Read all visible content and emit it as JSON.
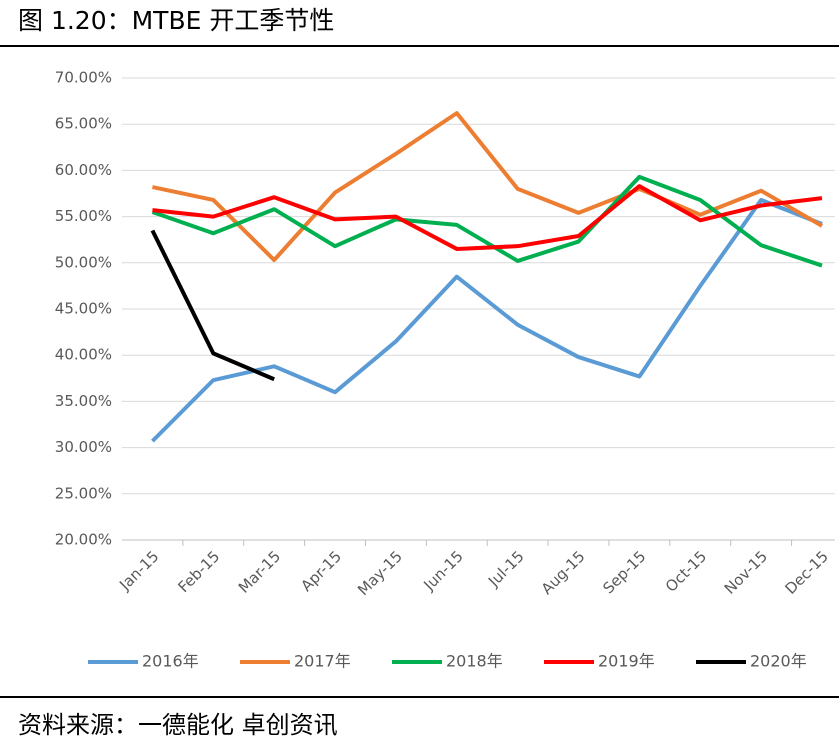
{
  "chart_data": {
    "type": "line",
    "title": "图 1.20：MTBE 开工季节性",
    "source": "资料来源：一德能化  卓创资讯",
    "categories": [
      "Jan-15",
      "Feb-15",
      "Mar-15",
      "Apr-15",
      "May-15",
      "Jun-15",
      "Jul-15",
      "Aug-15",
      "Sep-15",
      "Oct-15",
      "Nov-15",
      "Dec-15"
    ],
    "series": [
      {
        "name": "2016年",
        "color": "#5b9bd5",
        "values": [
          30.7,
          37.3,
          38.8,
          36.0,
          41.5,
          48.5,
          43.3,
          39.8,
          37.7,
          47.5,
          56.8,
          54.2
        ]
      },
      {
        "name": "2017年",
        "color": "#ed7d31",
        "values": [
          58.2,
          56.8,
          50.3,
          57.6,
          61.8,
          66.2,
          58.0,
          55.4,
          58.0,
          55.2,
          57.8,
          54.0
        ]
      },
      {
        "name": "2018年",
        "color": "#00b050",
        "values": [
          55.5,
          53.2,
          55.8,
          51.8,
          54.7,
          54.1,
          50.2,
          52.3,
          59.3,
          56.8,
          51.9,
          49.7
        ]
      },
      {
        "name": "2019年",
        "color": "#ff0000",
        "values": [
          55.7,
          55.0,
          57.1,
          54.7,
          55.0,
          51.5,
          51.8,
          52.9,
          58.3,
          54.6,
          56.2,
          57.0
        ]
      },
      {
        "name": "2020年",
        "color": "#000000",
        "values": [
          53.5,
          40.2,
          37.4,
          null,
          null,
          null,
          null,
          null,
          null,
          null,
          null,
          null
        ]
      }
    ],
    "ylim": [
      20,
      70
    ],
    "yticks": [
      {
        "value": 20,
        "label": "20.00%"
      },
      {
        "value": 25,
        "label": "25.00%"
      },
      {
        "value": 30,
        "label": "30.00%"
      },
      {
        "value": 35,
        "label": "35.00%"
      },
      {
        "value": 40,
        "label": "40.00%"
      },
      {
        "value": 45,
        "label": "45.00%"
      },
      {
        "value": 50,
        "label": "50.00%"
      },
      {
        "value": 55,
        "label": "55.00%"
      },
      {
        "value": 60,
        "label": "60.00%"
      },
      {
        "value": 65,
        "label": "65.00%"
      },
      {
        "value": 70,
        "label": "70.00%"
      }
    ],
    "grid": true,
    "legend": "bottom"
  }
}
